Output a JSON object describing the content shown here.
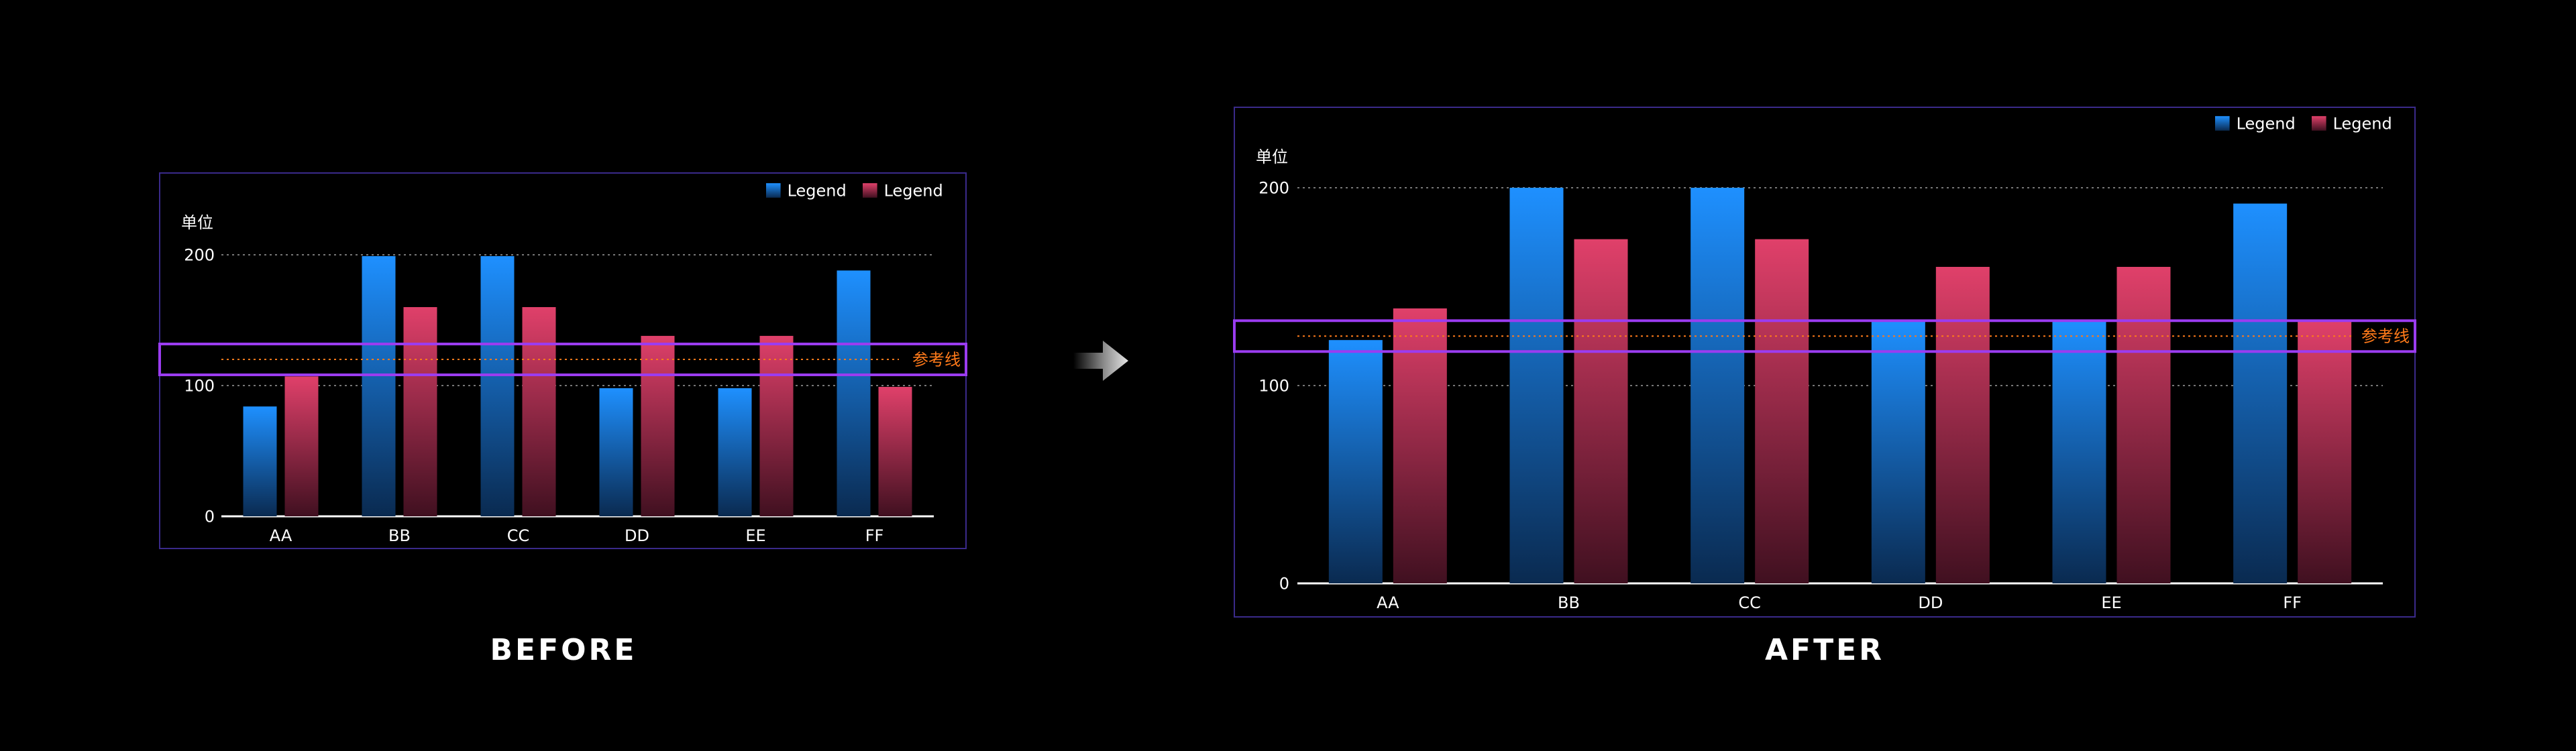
{
  "panels": [
    {
      "caption": "BEFORE",
      "chart_data": {
        "type": "bar",
        "categories": [
          "AA",
          "BB",
          "CC",
          "DD",
          "EE",
          "FF"
        ],
        "series": [
          {
            "name": "Legend",
            "values": [
              84,
              199,
              199,
              98,
              98,
              188
            ]
          },
          {
            "name": "Legend",
            "values": [
              107,
              160,
              160,
              138,
              138,
              99
            ]
          }
        ],
        "ylabel": "单位",
        "yticks": [
          0,
          100,
          200
        ],
        "ylim": [
          0,
          200
        ],
        "reference_line": {
          "label": "参考线",
          "value": 120
        },
        "grid": true,
        "legend_position": "top-right"
      }
    },
    {
      "caption": "AFTER",
      "chart_data": {
        "type": "bar",
        "categories": [
          "AA",
          "BB",
          "CC",
          "DD",
          "EE",
          "FF"
        ],
        "series": [
          {
            "name": "Legend",
            "values": [
              123,
              200,
              200,
              133,
              133,
              192
            ]
          },
          {
            "name": "Legend",
            "values": [
              139,
              174,
              174,
              160,
              160,
              133
            ]
          }
        ],
        "ylabel": "单位",
        "yticks": [
          0,
          100,
          200
        ],
        "ylim": [
          0,
          200
        ],
        "reference_line": {
          "label": "参考线",
          "value": 125
        },
        "grid": true,
        "legend_position": "top-right"
      }
    }
  ],
  "colors": {
    "series1_top": "#1e90ff",
    "series1_bottom": "#0a2a50",
    "series2_top": "#e0406a",
    "series2_bottom": "#401020",
    "frame": "#3a2a8a",
    "highlight": "#9b3cf0",
    "reference": "#ff7a1a",
    "grid": "#777777",
    "axis": "#ffffff",
    "text": "#ffffff"
  }
}
